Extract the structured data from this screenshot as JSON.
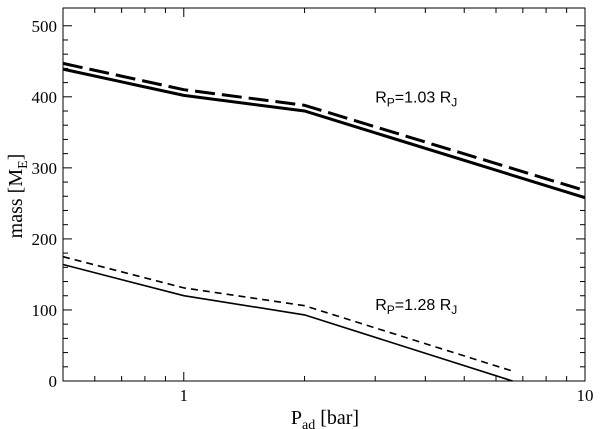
{
  "chart_data": {
    "type": "line",
    "x_scale": "log",
    "xlim": [
      0.5,
      10
    ],
    "ylim": [
      0,
      525
    ],
    "x_ticks": [
      1,
      10
    ],
    "x_tick_labels": [
      "1",
      "10"
    ],
    "y_ticks": [
      0,
      100,
      200,
      300,
      400,
      500
    ],
    "y_tick_labels": [
      "0",
      "100",
      "200",
      "300",
      "400",
      "500"
    ],
    "xlabel": {
      "main": "P",
      "sub": "ad",
      "rest": " [bar]"
    },
    "ylabel": {
      "main": "mass [M",
      "sub": "E",
      "rest": "]"
    },
    "grid": false,
    "series": [
      {
        "style": "dashed-thick",
        "x": [
          0.5,
          1.0,
          2.0,
          10.0
        ],
        "y": [
          447,
          410,
          388,
          268
        ]
      },
      {
        "style": "solid-thick",
        "x": [
          0.5,
          1.0,
          2.0,
          10.0
        ],
        "y": [
          439,
          402,
          380,
          258
        ]
      },
      {
        "style": "dashed-thin",
        "x": [
          0.5,
          1.0,
          2.0,
          6.6
        ],
        "y": [
          175,
          131,
          106,
          14
        ]
      },
      {
        "style": "solid-thin",
        "x": [
          0.5,
          1.0,
          2.0,
          6.6
        ],
        "y": [
          164,
          120,
          93,
          0
        ]
      }
    ],
    "annotations": [
      {
        "id": "upper",
        "main": "R",
        "sub": "P",
        "rest": "=1.03 R",
        "sub2": "J",
        "x": 3.0,
        "y": 392
      },
      {
        "id": "lower",
        "main": "R",
        "sub": "P",
        "rest": "=1.28 R",
        "sub2": "J",
        "x": 3.0,
        "y": 100
      }
    ]
  }
}
